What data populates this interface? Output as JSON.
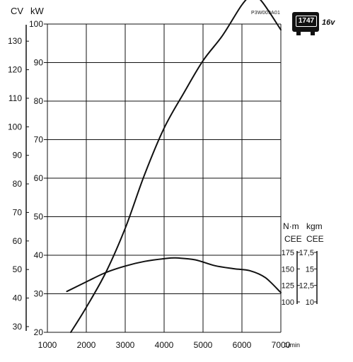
{
  "reference": "P3W009A01",
  "engine_badge": {
    "displacement": "1747",
    "valves": "16v"
  },
  "chart_data": {
    "type": "line",
    "xlabel": "1/min",
    "x_ticks": [
      1000,
      2000,
      3000,
      4000,
      5000,
      6000,
      7000
    ],
    "xlim": [
      1000,
      7000
    ],
    "axes": {
      "power_cv": {
        "label": "CV",
        "ticks": [
          30,
          40,
          50,
          60,
          70,
          80,
          90,
          100,
          110,
          120,
          130
        ],
        "range": [
          28,
          136
        ]
      },
      "power_kw": {
        "label": "kW",
        "ticks": [
          20,
          30,
          40,
          50,
          60,
          70,
          80,
          90,
          100
        ],
        "range": [
          20,
          100
        ]
      },
      "torque_nm": {
        "label": "N·m",
        "sublabel": "CEE",
        "ticks": [
          100,
          125,
          150,
          175
        ]
      },
      "torque_kgm": {
        "label": "kgm",
        "sublabel": "CEE",
        "ticks": [
          "10",
          "12,5",
          "15",
          "17,5"
        ]
      }
    },
    "series": [
      {
        "axis": "power_kw",
        "points": [
          [
            1600,
            20
          ],
          [
            2000,
            26.5
          ],
          [
            2500,
            35.5
          ],
          [
            3000,
            47
          ],
          [
            3500,
            61
          ],
          [
            4000,
            73
          ],
          [
            4500,
            82
          ],
          [
            5000,
            90.5
          ],
          [
            5500,
            97
          ],
          [
            6000,
            105
          ],
          [
            6250,
            107.2
          ],
          [
            6500,
            106
          ],
          [
            7000,
            98.5
          ]
        ]
      },
      {
        "axis": "power_kw",
        "points": [
          [
            1500,
            30.6
          ],
          [
            2000,
            33.1
          ],
          [
            2500,
            35.5
          ],
          [
            3000,
            37.2
          ],
          [
            3500,
            38.4
          ],
          [
            4000,
            39.1
          ],
          [
            4300,
            39.3
          ],
          [
            4800,
            38.8
          ],
          [
            5300,
            37.3
          ],
          [
            5800,
            36.5
          ],
          [
            6200,
            36
          ],
          [
            6600,
            34.2
          ],
          [
            7000,
            30.3
          ]
        ]
      }
    ],
    "grid": true
  }
}
